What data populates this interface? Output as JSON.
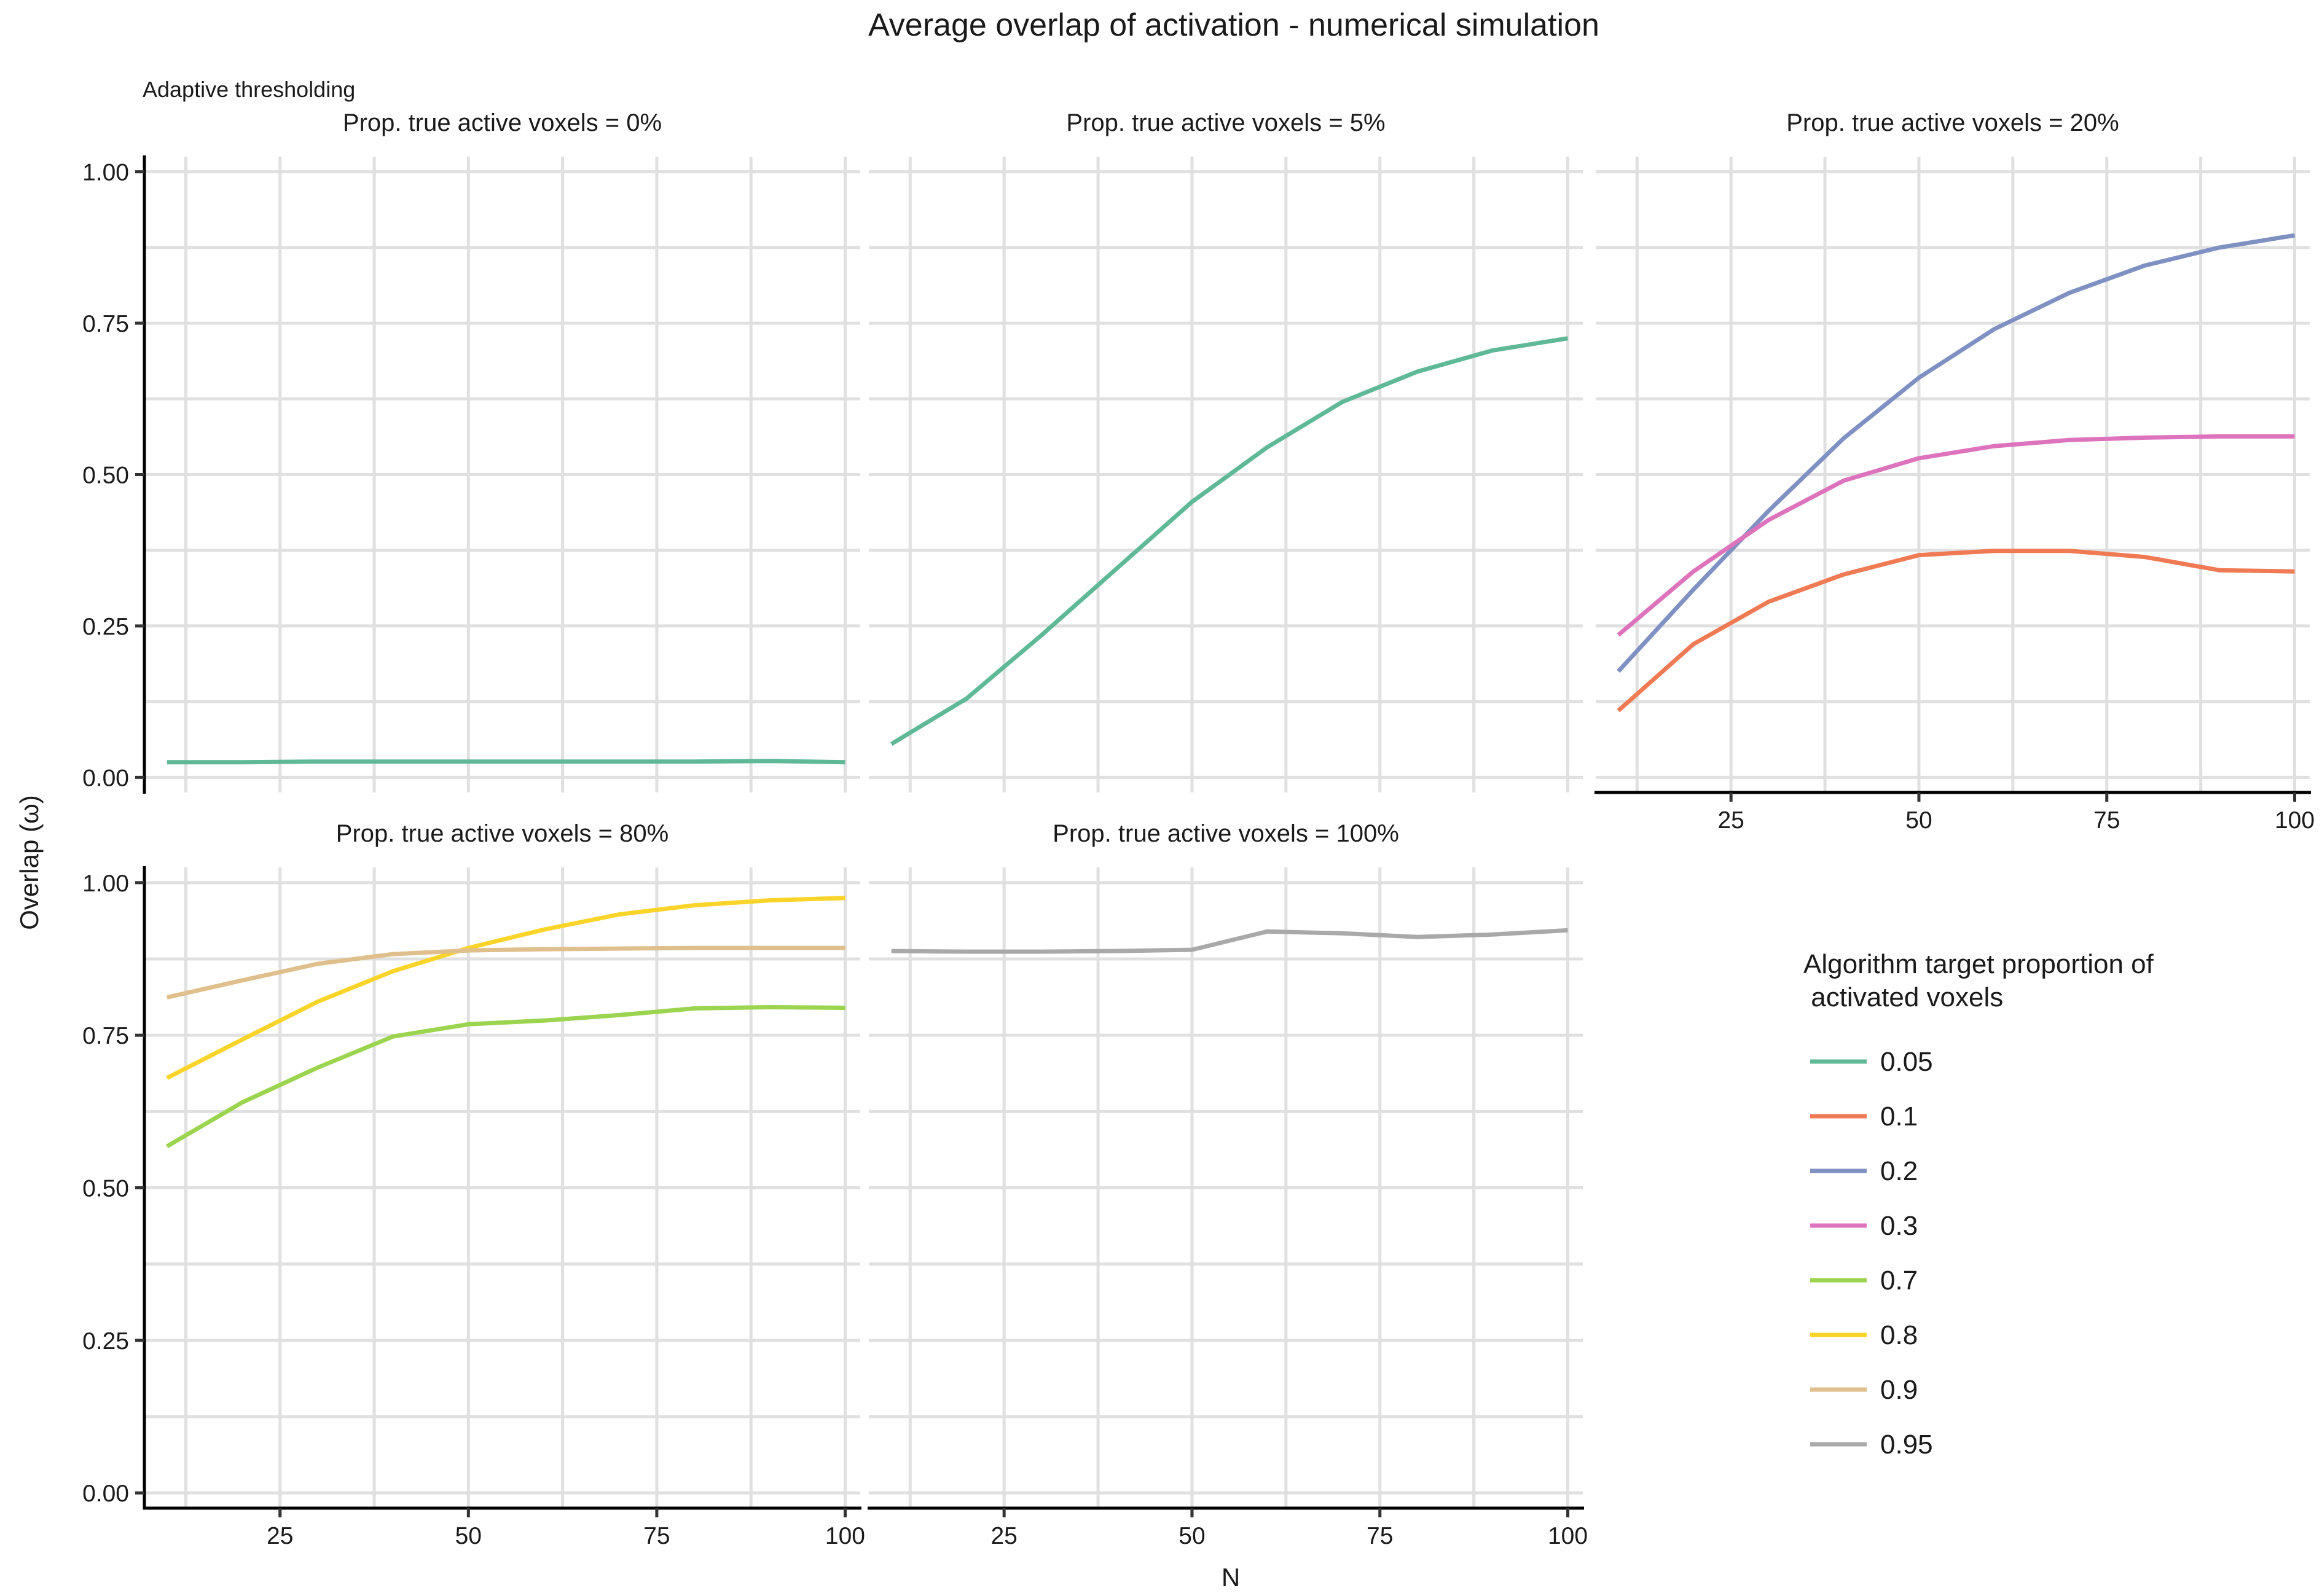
{
  "title": "Average overlap of activation - numerical simulation",
  "subtitle": "Adaptive thresholding",
  "xlabel": "N",
  "ylabel": "Overlap (ω)",
  "legend": {
    "title_line1": "Algorithm target proportion of",
    "title_line2": " activated voxels",
    "placement": "right",
    "items": [
      {
        "label": "0.05",
        "color": "#5fb896"
      },
      {
        "label": "0.1",
        "color": "#ef7a53"
      },
      {
        "label": "0.2",
        "color": "#7f90c2"
      },
      {
        "label": "0.3",
        "color": "#dd73bc"
      },
      {
        "label": "0.7",
        "color": "#9bd44e"
      },
      {
        "label": "0.8",
        "color": "#fbd429"
      },
      {
        "label": "0.9",
        "color": "#dfbf8c"
      },
      {
        "label": "0.95",
        "color": "#a9a9a9"
      }
    ]
  },
  "chart_data": {
    "type": "line",
    "title": "Average overlap of activation - numerical simulation",
    "subtitle": "Adaptive thresholding",
    "xlabel": "N",
    "ylabel": "Overlap (ω)",
    "x": [
      10,
      20,
      30,
      40,
      50,
      60,
      70,
      80,
      90,
      100
    ],
    "xlim": [
      7,
      102
    ],
    "ylim": [
      -0.025,
      1.025
    ],
    "x_ticks": [
      "25",
      "50",
      "75",
      "100"
    ],
    "y_ticks": [
      "0.00",
      "0.25",
      "0.50",
      "0.75",
      "1.00"
    ],
    "grid": true,
    "panels": [
      {
        "title": "Prop. true active voxels = 0%",
        "series": [
          {
            "name": "0.05",
            "color": "#5fb896",
            "values": [
              0.025,
              0.025,
              0.026,
              0.026,
              0.026,
              0.026,
              0.026,
              0.026,
              0.027,
              0.025
            ]
          }
        ]
      },
      {
        "title": "Prop. true active voxels = 5%",
        "series": [
          {
            "name": "0.05",
            "color": "#5fb896",
            "values": [
              0.055,
              0.13,
              0.235,
              0.345,
              0.455,
              0.545,
              0.62,
              0.67,
              0.705,
              0.725
            ]
          }
        ]
      },
      {
        "title": "Prop. true active voxels = 20%",
        "series": [
          {
            "name": "0.1",
            "color": "#ef7a53",
            "values": [
              0.11,
              0.22,
              0.29,
              0.335,
              0.367,
              0.374,
              0.374,
              0.364,
              0.342,
              0.34
            ]
          },
          {
            "name": "0.2",
            "color": "#7f90c2",
            "values": [
              0.175,
              0.31,
              0.44,
              0.56,
              0.66,
              0.74,
              0.8,
              0.845,
              0.875,
              0.895
            ]
          },
          {
            "name": "0.3",
            "color": "#dd73bc",
            "values": [
              0.235,
              0.34,
              0.425,
              0.49,
              0.527,
              0.547,
              0.557,
              0.561,
              0.563,
              0.563
            ]
          }
        ]
      },
      {
        "title": "Prop. true active voxels = 80%",
        "series": [
          {
            "name": "0.7",
            "color": "#9bd44e",
            "values": [
              0.568,
              0.64,
              0.697,
              0.748,
              0.768,
              0.774,
              0.783,
              0.794,
              0.796,
              0.795
            ]
          },
          {
            "name": "0.8",
            "color": "#fbd429",
            "values": [
              0.68,
              0.743,
              0.805,
              0.855,
              0.893,
              0.923,
              0.948,
              0.963,
              0.971,
              0.975
            ]
          },
          {
            "name": "0.9",
            "color": "#dfbf8c",
            "values": [
              0.812,
              0.84,
              0.867,
              0.883,
              0.889,
              0.891,
              0.892,
              0.893,
              0.893,
              0.893
            ]
          }
        ]
      },
      {
        "title": "Prop. true active voxels = 100%",
        "series": [
          {
            "name": "0.95",
            "color": "#a9a9a9",
            "values": [
              0.888,
              0.887,
              0.887,
              0.888,
              0.89,
              0.92,
              0.917,
              0.911,
              0.915,
              0.922
            ]
          }
        ]
      }
    ]
  }
}
